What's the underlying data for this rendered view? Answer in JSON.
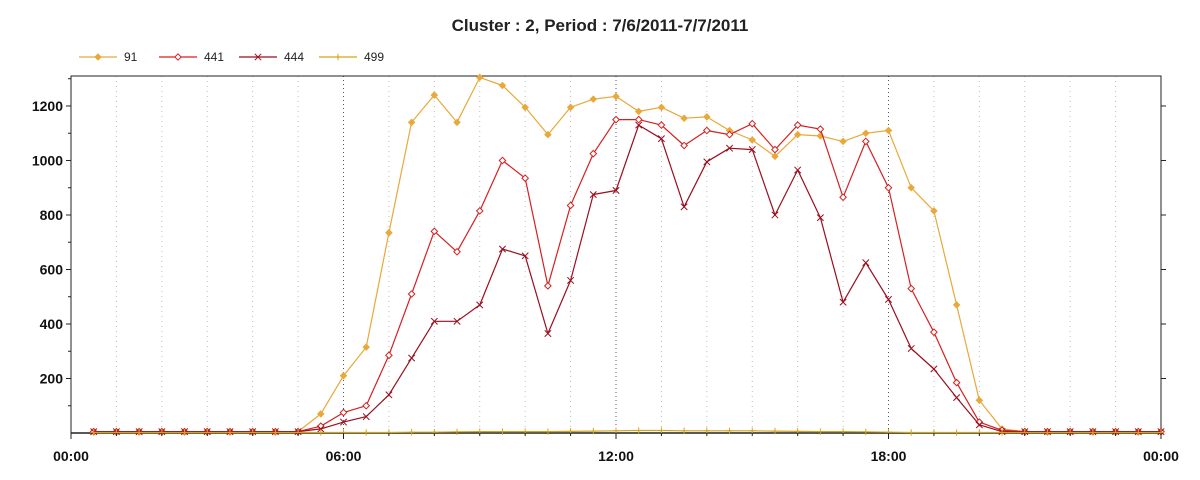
{
  "chart_data": {
    "type": "line",
    "title": "Cluster : 2, Period : 7/6/2011-7/7/2011",
    "xlabel": "",
    "ylabel": "",
    "x_tick_labels": [
      "00:00",
      "06:00",
      "12:00",
      "18:00",
      "00:00"
    ],
    "y_ticks": [
      200,
      400,
      600,
      800,
      1000,
      1200
    ],
    "ylim": [
      0,
      1310
    ],
    "xlim_hours": [
      0,
      24
    ],
    "grid": "on",
    "legend_position": "top-left",
    "series": [
      {
        "name": "91",
        "color": "#e8a93a",
        "marker": "diamond",
        "points": [
          [
            0.5,
            5
          ],
          [
            1,
            5
          ],
          [
            1.5,
            5
          ],
          [
            2,
            5
          ],
          [
            2.5,
            5
          ],
          [
            3,
            5
          ],
          [
            3.5,
            5
          ],
          [
            4,
            5
          ],
          [
            4.5,
            5
          ],
          [
            5,
            5
          ],
          [
            5.5,
            70
          ],
          [
            6,
            210
          ],
          [
            6.5,
            315
          ],
          [
            7,
            735
          ],
          [
            7.5,
            1140
          ],
          [
            8,
            1240
          ],
          [
            8.5,
            1140
          ],
          [
            9,
            1305
          ],
          [
            9.5,
            1275
          ],
          [
            10,
            1195
          ],
          [
            10.5,
            1095
          ],
          [
            11,
            1195
          ],
          [
            11.5,
            1225
          ],
          [
            12,
            1235
          ],
          [
            12.5,
            1180
          ],
          [
            13,
            1195
          ],
          [
            13.5,
            1155
          ],
          [
            14,
            1160
          ],
          [
            14.5,
            1110
          ],
          [
            15,
            1075
          ],
          [
            15.5,
            1015
          ],
          [
            16,
            1095
          ],
          [
            16.5,
            1090
          ],
          [
            17,
            1070
          ],
          [
            17.5,
            1100
          ],
          [
            18,
            1110
          ],
          [
            18.5,
            900
          ],
          [
            19,
            815
          ],
          [
            19.5,
            470
          ],
          [
            20,
            120
          ],
          [
            20.5,
            15
          ],
          [
            21,
            5
          ],
          [
            21.5,
            5
          ],
          [
            22,
            5
          ],
          [
            22.5,
            5
          ],
          [
            23,
            5
          ],
          [
            23.5,
            5
          ],
          [
            24,
            5
          ]
        ]
      },
      {
        "name": "441",
        "color": "#d62020",
        "marker": "diamond-open",
        "points": [
          [
            0.5,
            5
          ],
          [
            1,
            5
          ],
          [
            1.5,
            5
          ],
          [
            2,
            5
          ],
          [
            2.5,
            5
          ],
          [
            3,
            5
          ],
          [
            3.5,
            5
          ],
          [
            4,
            5
          ],
          [
            4.5,
            5
          ],
          [
            5,
            5
          ],
          [
            5.5,
            25
          ],
          [
            6,
            75
          ],
          [
            6.5,
            100
          ],
          [
            7,
            285
          ],
          [
            7.5,
            510
          ],
          [
            8,
            740
          ],
          [
            8.5,
            665
          ],
          [
            9,
            815
          ],
          [
            9.5,
            1000
          ],
          [
            10,
            935
          ],
          [
            10.5,
            540
          ],
          [
            11,
            835
          ],
          [
            11.5,
            1025
          ],
          [
            12,
            1150
          ],
          [
            12.5,
            1150
          ],
          [
            13,
            1130
          ],
          [
            13.5,
            1055
          ],
          [
            14,
            1110
          ],
          [
            14.5,
            1095
          ],
          [
            15,
            1135
          ],
          [
            15.5,
            1040
          ],
          [
            16,
            1130
          ],
          [
            16.5,
            1115
          ],
          [
            17,
            865
          ],
          [
            17.5,
            1070
          ],
          [
            18,
            900
          ],
          [
            18.5,
            530
          ],
          [
            19,
            370
          ],
          [
            19.5,
            185
          ],
          [
            20,
            40
          ],
          [
            20.5,
            10
          ],
          [
            21,
            5
          ],
          [
            21.5,
            5
          ],
          [
            22,
            5
          ],
          [
            22.5,
            5
          ],
          [
            23,
            5
          ],
          [
            23.5,
            5
          ],
          [
            24,
            5
          ]
        ]
      },
      {
        "name": "444",
        "color": "#9a0e1e",
        "marker": "x",
        "points": [
          [
            0.5,
            5
          ],
          [
            1,
            5
          ],
          [
            1.5,
            5
          ],
          [
            2,
            5
          ],
          [
            2.5,
            5
          ],
          [
            3,
            5
          ],
          [
            3.5,
            5
          ],
          [
            4,
            5
          ],
          [
            4.5,
            5
          ],
          [
            5,
            5
          ],
          [
            5.5,
            15
          ],
          [
            6,
            40
          ],
          [
            6.5,
            60
          ],
          [
            7,
            140
          ],
          [
            7.5,
            275
          ],
          [
            8,
            410
          ],
          [
            8.5,
            410
          ],
          [
            9,
            470
          ],
          [
            9.5,
            675
          ],
          [
            10,
            650
          ],
          [
            10.5,
            365
          ],
          [
            11,
            560
          ],
          [
            11.5,
            875
          ],
          [
            12,
            890
          ],
          [
            12.5,
            1130
          ],
          [
            13,
            1080
          ],
          [
            13.5,
            830
          ],
          [
            14,
            995
          ],
          [
            14.5,
            1045
          ],
          [
            15,
            1040
          ],
          [
            15.5,
            800
          ],
          [
            16,
            965
          ],
          [
            16.5,
            790
          ],
          [
            17,
            480
          ],
          [
            17.5,
            625
          ],
          [
            18,
            490
          ],
          [
            18.5,
            310
          ],
          [
            19,
            235
          ],
          [
            19.5,
            130
          ],
          [
            20,
            30
          ],
          [
            20.5,
            5
          ],
          [
            21,
            5
          ],
          [
            21.5,
            5
          ],
          [
            22,
            5
          ],
          [
            22.5,
            5
          ],
          [
            23,
            5
          ],
          [
            23.5,
            5
          ],
          [
            24,
            5
          ]
        ]
      },
      {
        "name": "499",
        "color": "#d4a414",
        "marker": "plus",
        "points": [
          [
            0.5,
            2
          ],
          [
            1,
            2
          ],
          [
            1.5,
            2
          ],
          [
            2,
            2
          ],
          [
            2.5,
            2
          ],
          [
            3,
            2
          ],
          [
            3.5,
            2
          ],
          [
            4,
            2
          ],
          [
            4.5,
            2
          ],
          [
            5,
            2
          ],
          [
            5.5,
            2
          ],
          [
            6,
            2
          ],
          [
            6.5,
            2
          ],
          [
            7,
            2
          ],
          [
            7.5,
            3
          ],
          [
            8,
            3
          ],
          [
            8.5,
            4
          ],
          [
            9,
            5
          ],
          [
            9.5,
            5
          ],
          [
            10,
            5
          ],
          [
            10.5,
            5
          ],
          [
            11,
            6
          ],
          [
            11.5,
            7
          ],
          [
            12,
            8
          ],
          [
            12.5,
            9
          ],
          [
            13,
            9
          ],
          [
            13.5,
            8
          ],
          [
            14,
            8
          ],
          [
            14.5,
            8
          ],
          [
            15,
            8
          ],
          [
            15.5,
            7
          ],
          [
            16,
            6
          ],
          [
            16.5,
            5
          ],
          [
            17,
            5
          ],
          [
            17.5,
            4
          ],
          [
            18,
            3
          ],
          [
            18.5,
            2
          ],
          [
            19,
            2
          ],
          [
            19.5,
            2
          ],
          [
            20,
            2
          ],
          [
            20.5,
            2
          ],
          [
            21,
            2
          ],
          [
            21.5,
            2
          ],
          [
            22,
            2
          ],
          [
            22.5,
            2
          ],
          [
            23,
            2
          ],
          [
            23.5,
            2
          ],
          [
            24,
            2
          ]
        ]
      }
    ]
  }
}
